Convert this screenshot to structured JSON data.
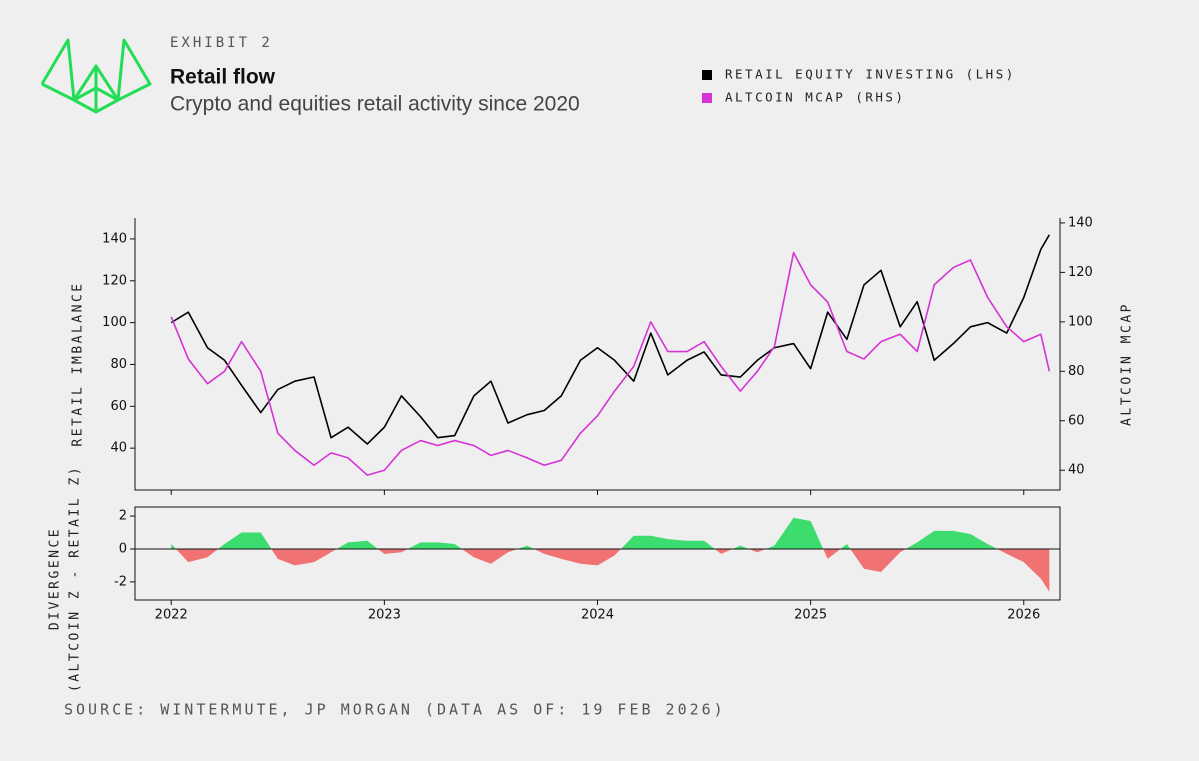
{
  "header": {
    "exhibit": "EXHIBIT 2",
    "title": "Retail flow",
    "subtitle": "Crypto and equities retail activity since 2020"
  },
  "source": "SOURCE: WINTERMUTE, JP MORGAN (DATA AS OF: 19 FEB 2026)",
  "chart_data": [
    {
      "type": "line",
      "ylabel": "RETAIL IMBALANCE",
      "y2label": "ALTCOIN MCAP",
      "x": [
        2022,
        2022.08,
        2022.17,
        2022.25,
        2022.33,
        2022.42,
        2022.5,
        2022.58,
        2022.67,
        2022.75,
        2022.83,
        2022.92,
        2023,
        2023.08,
        2023.17,
        2023.25,
        2023.33,
        2023.42,
        2023.5,
        2023.58,
        2023.67,
        2023.75,
        2023.83,
        2023.92,
        2024,
        2024.08,
        2024.17,
        2024.25,
        2024.33,
        2024.42,
        2024.5,
        2024.58,
        2024.67,
        2024.75,
        2024.83,
        2024.92,
        2025,
        2025.08,
        2025.17,
        2025.25,
        2025.33,
        2025.42,
        2025.5,
        2025.58,
        2025.67,
        2025.75,
        2025.83,
        2025.92,
        2026,
        2026.08,
        2026.12
      ],
      "series": [
        {
          "name": "RETAIL EQUITY INVESTING (LHS)",
          "color": "#000000",
          "values": [
            100,
            105,
            88,
            82,
            70,
            57,
            68,
            72,
            74,
            45,
            50,
            42,
            50,
            65,
            55,
            45,
            46,
            65,
            72,
            52,
            56,
            58,
            65,
            82,
            88,
            82,
            72,
            95,
            75,
            82,
            86,
            75,
            74,
            82,
            88,
            90,
            78,
            105,
            92,
            118,
            125,
            98,
            110,
            82,
            90,
            98,
            100,
            95,
            112,
            135,
            142
          ]
        },
        {
          "name": "ALTCOIN MCAP (RHS)",
          "color": "#d633d6",
          "axis": "y2",
          "values": [
            102,
            85,
            75,
            80,
            92,
            80,
            55,
            48,
            42,
            47,
            45,
            38,
            40,
            48,
            52,
            50,
            52,
            50,
            46,
            48,
            45,
            42,
            44,
            55,
            62,
            72,
            82,
            100,
            88,
            88,
            92,
            82,
            72,
            80,
            90,
            128,
            115,
            108,
            88,
            85,
            92,
            95,
            88,
            115,
            122,
            125,
            110,
            98,
            92,
            95,
            80
          ]
        }
      ],
      "xlim": [
        2021.83,
        2026.17
      ],
      "xticks": [
        2022,
        2023,
        2024,
        2025,
        2026
      ],
      "ylim": [
        20,
        150
      ],
      "yticks": [
        40,
        60,
        80,
        100,
        120,
        140
      ],
      "y2lim": [
        32,
        142
      ],
      "y2ticks": [
        40,
        60,
        80,
        100,
        120,
        140
      ]
    },
    {
      "type": "area",
      "ylabel": [
        "DIVERGENCE",
        "(ALTCOIN Z - RETAIL Z)"
      ],
      "colors": {
        "positive": "#3ddc6f",
        "negative": "#f07272"
      },
      "x": [
        2022,
        2022.08,
        2022.17,
        2022.25,
        2022.33,
        2022.42,
        2022.5,
        2022.58,
        2022.67,
        2022.75,
        2022.83,
        2022.92,
        2023,
        2023.08,
        2023.17,
        2023.25,
        2023.33,
        2023.42,
        2023.5,
        2023.58,
        2023.67,
        2023.75,
        2023.83,
        2023.92,
        2024,
        2024.08,
        2024.17,
        2024.25,
        2024.33,
        2024.42,
        2024.5,
        2024.58,
        2024.67,
        2024.75,
        2024.83,
        2024.92,
        2025,
        2025.08,
        2025.17,
        2025.25,
        2025.33,
        2025.42,
        2025.5,
        2025.58,
        2025.67,
        2025.75,
        2025.83,
        2025.92,
        2026,
        2026.08,
        2026.12
      ],
      "values": [
        0.3,
        -0.8,
        -0.5,
        0.3,
        1.0,
        1.0,
        -0.6,
        -1.0,
        -0.8,
        -0.2,
        0.4,
        0.5,
        -0.3,
        -0.2,
        0.4,
        0.4,
        0.3,
        -0.5,
        -0.9,
        -0.2,
        0.2,
        -0.3,
        -0.6,
        -0.9,
        -1.0,
        -0.4,
        0.8,
        0.8,
        0.6,
        0.5,
        0.5,
        -0.3,
        0.2,
        -0.2,
        0.2,
        1.9,
        1.7,
        -0.6,
        0.3,
        -1.2,
        -1.4,
        -0.2,
        0.4,
        1.1,
        1.1,
        0.9,
        0.3,
        -0.3,
        -0.8,
        -1.8,
        -2.6
      ],
      "xlim": [
        2021.83,
        2026.17
      ],
      "xticks": [
        2022,
        2023,
        2024,
        2025,
        2026
      ],
      "ylim": [
        -3.1,
        2.55
      ],
      "yticks": [
        -2,
        0,
        2
      ]
    }
  ]
}
